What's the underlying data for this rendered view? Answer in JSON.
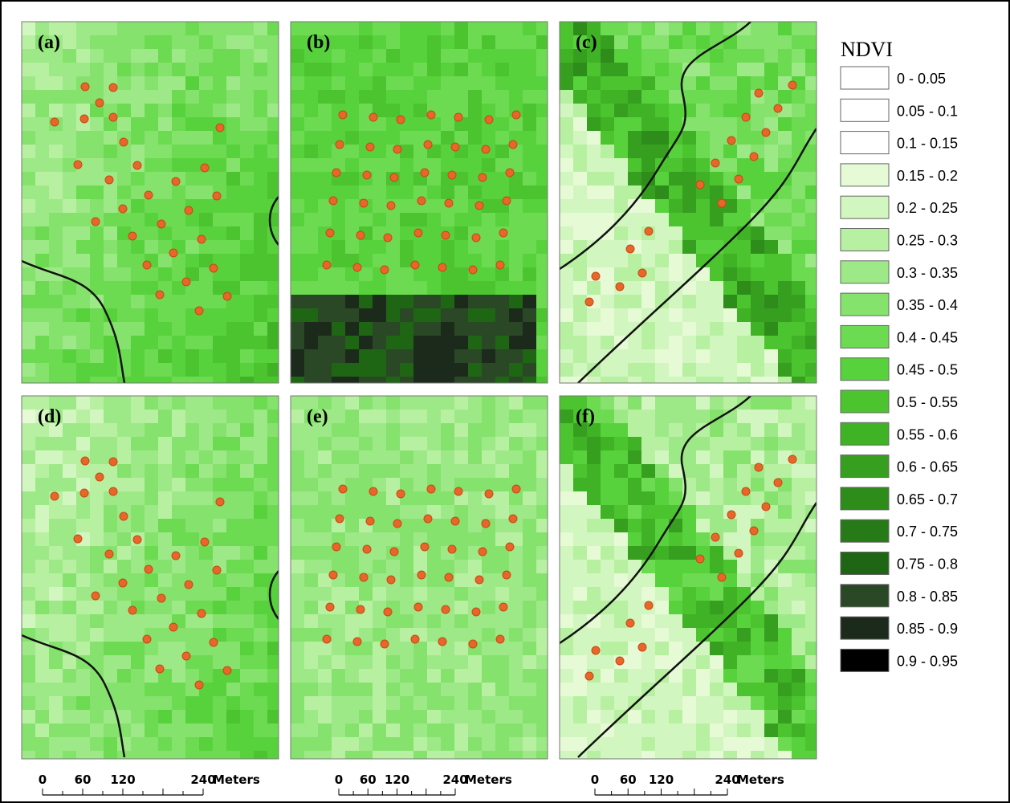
{
  "panels": [
    {
      "label": "(a)"
    },
    {
      "label": "(b)"
    },
    {
      "label": "(c)"
    },
    {
      "label": "(d)"
    },
    {
      "label": "(e)"
    },
    {
      "label": "(f)"
    }
  ],
  "legend": {
    "title": "NDVI",
    "classes": [
      {
        "label": "0 - 0.05",
        "color": "#ffffff"
      },
      {
        "label": "0.05 - 0.1",
        "color": "#ffffff"
      },
      {
        "label": "0.1 - 0.15",
        "color": "#ffffff"
      },
      {
        "label": "0.15 - 0.2",
        "color": "#e6fad6"
      },
      {
        "label": "0.2 - 0.25",
        "color": "#d2f6bf"
      },
      {
        "label": "0.25 - 0.3",
        "color": "#b8f0a2"
      },
      {
        "label": "0.3 - 0.35",
        "color": "#9ee987"
      },
      {
        "label": "0.35 - 0.4",
        "color": "#85e26d"
      },
      {
        "label": "0.4 - 0.45",
        "color": "#6cdb52"
      },
      {
        "label": "0.45 - 0.5",
        "color": "#58d23c"
      },
      {
        "label": "0.5 - 0.55",
        "color": "#4bc42f"
      },
      {
        "label": "0.55 - 0.6",
        "color": "#40b226"
      },
      {
        "label": "0.6 - 0.65",
        "color": "#379f20"
      },
      {
        "label": "0.65 - 0.7",
        "color": "#2e8c1b"
      },
      {
        "label": "0.7 - 0.75",
        "color": "#267a17"
      },
      {
        "label": "0.75 - 0.8",
        "color": "#1f6614"
      },
      {
        "label": "0.8 - 0.85",
        "color": "#2a4826"
      },
      {
        "label": "0.85 - 0.9",
        "color": "#1c2a1b"
      },
      {
        "label": "0.9 - 0.95",
        "color": "#000000"
      }
    ]
  },
  "scale_bars": [
    {
      "ticks": [
        0,
        60,
        120,
        240
      ],
      "unit": "Meters"
    },
    {
      "ticks": [
        0,
        60,
        120,
        240
      ],
      "unit": "Meters"
    },
    {
      "ticks": [
        0,
        60,
        120,
        240
      ],
      "unit": "Meters"
    }
  ]
}
